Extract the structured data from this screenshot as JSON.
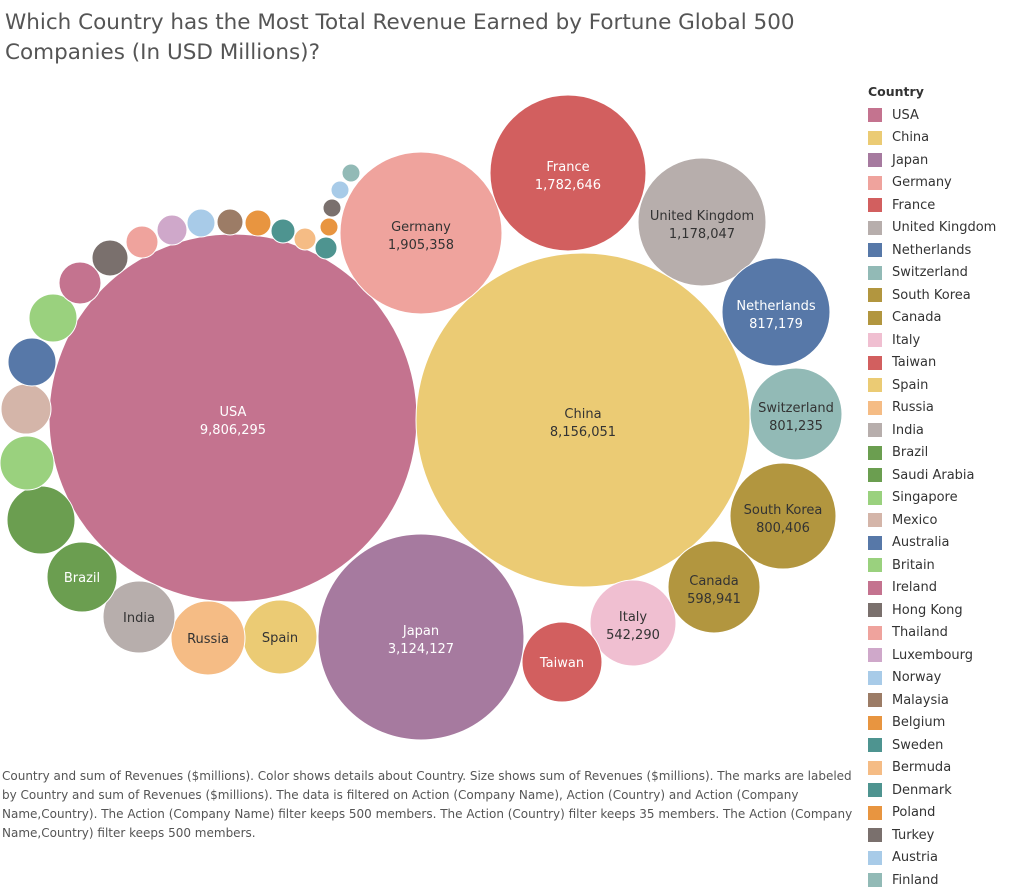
{
  "title": "Which Country has the Most Total Revenue Earned by Fortune  Global 500 Companies (In USD Millions)?",
  "legend_title": "Country",
  "caption": "Country and sum of Revenues ($millions).  Color shows details about Country.  Size shows sum of Revenues ($millions).  The marks are labeled by Country and sum of Revenues ($millions). The data is filtered on Action (Company Name), Action (Country) and Action (Company Name,Country). The Action (Company Name) filter keeps 500 members. The Action (Country) filter keeps 35 members. The Action (Company Name,Country) filter keeps 500 members.",
  "chart_data": {
    "type": "packed-bubble",
    "measure": "sum of Revenues ($millions)",
    "series": [
      {
        "name": "USA",
        "value": 9806295,
        "label_value": "9,806,295",
        "color": "#c4738f"
      },
      {
        "name": "China",
        "value": 8156051,
        "label_value": "8,156,051",
        "color": "#ebcb74"
      },
      {
        "name": "Japan",
        "value": 3124127,
        "label_value": "3,124,127",
        "color": "#a67a9f"
      },
      {
        "name": "Germany",
        "value": 1905358,
        "label_value": "1,905,358",
        "color": "#efa39d"
      },
      {
        "name": "France",
        "value": 1782646,
        "label_value": "1,782,646",
        "color": "#d25f5f"
      },
      {
        "name": "United Kingdom",
        "value": 1178047,
        "label_value": "1,178,047",
        "color": "#b7aeac"
      },
      {
        "name": "Netherlands",
        "value": 817179,
        "label_value": "817,179",
        "color": "#5778a8"
      },
      {
        "name": "Switzerland",
        "value": 801235,
        "label_value": "801,235",
        "color": "#92bab6"
      },
      {
        "name": "South Korea",
        "value": 800406,
        "label_value": "800,406",
        "color": "#b2963f"
      },
      {
        "name": "Canada",
        "value": 598941,
        "label_value": "598,941",
        "color": "#b2963f"
      },
      {
        "name": "Italy",
        "value": 542290,
        "label_value": "542,290",
        "color": "#f0bfd1"
      },
      {
        "name": "Taiwan",
        "value": null,
        "label_value": "",
        "color": "#d25f5f"
      },
      {
        "name": "Spain",
        "value": null,
        "label_value": "",
        "color": "#ebcb74"
      },
      {
        "name": "Russia",
        "value": null,
        "label_value": "",
        "color": "#f5bc85"
      },
      {
        "name": "India",
        "value": null,
        "label_value": "",
        "color": "#b7aeac"
      },
      {
        "name": "Brazil",
        "value": null,
        "label_value": "",
        "color": "#6b9e50"
      },
      {
        "name": "Saudi Arabia",
        "value": null,
        "label_value": "",
        "color": "#6b9e50"
      },
      {
        "name": "Singapore",
        "value": null,
        "label_value": "",
        "color": "#9ad17e"
      },
      {
        "name": "Mexico",
        "value": null,
        "label_value": "",
        "color": "#d4b5a9"
      },
      {
        "name": "Australia",
        "value": null,
        "label_value": "",
        "color": "#5778a8"
      },
      {
        "name": "Britain",
        "value": null,
        "label_value": "",
        "color": "#9ad17e"
      },
      {
        "name": "Ireland",
        "value": null,
        "label_value": "",
        "color": "#c4738f"
      },
      {
        "name": "Hong Kong",
        "value": null,
        "label_value": "",
        "color": "#7a706d"
      },
      {
        "name": "Thailand",
        "value": null,
        "label_value": "",
        "color": "#efa39d"
      },
      {
        "name": "Luxembourg",
        "value": null,
        "label_value": "",
        "color": "#cfa8ca"
      },
      {
        "name": "Norway",
        "value": null,
        "label_value": "",
        "color": "#a8cbe8"
      },
      {
        "name": "Malaysia",
        "value": null,
        "label_value": "",
        "color": "#9c7c66"
      },
      {
        "name": "Belgium",
        "value": null,
        "label_value": "",
        "color": "#e89540"
      },
      {
        "name": "Sweden",
        "value": null,
        "label_value": "",
        "color": "#4e9490"
      },
      {
        "name": "Bermuda",
        "value": null,
        "label_value": "",
        "color": "#f5bc85"
      },
      {
        "name": "Denmark",
        "value": null,
        "label_value": "",
        "color": "#4e9490"
      },
      {
        "name": "Poland",
        "value": null,
        "label_value": "",
        "color": "#e89540"
      },
      {
        "name": "Turkey",
        "value": null,
        "label_value": "",
        "color": "#7a706d"
      },
      {
        "name": "Austria",
        "value": null,
        "label_value": "",
        "color": "#a8cbe8"
      },
      {
        "name": "Finland",
        "value": null,
        "label_value": "",
        "color": "#92bab6"
      }
    ],
    "labeled_marks": [
      "USA",
      "China",
      "Japan",
      "Germany",
      "France",
      "United Kingdom",
      "Netherlands",
      "Switzerland",
      "South Korea",
      "Canada",
      "Italy",
      "Taiwan",
      "Spain",
      "Russia",
      "India",
      "Brazil"
    ],
    "label_text_color": {
      "USA": "#ffffff",
      "Japan": "#ffffff",
      "France": "#ffffff",
      "Netherlands": "#ffffff",
      "Taiwan": "#ffffff",
      "Brazil": "#ffffff"
    }
  }
}
